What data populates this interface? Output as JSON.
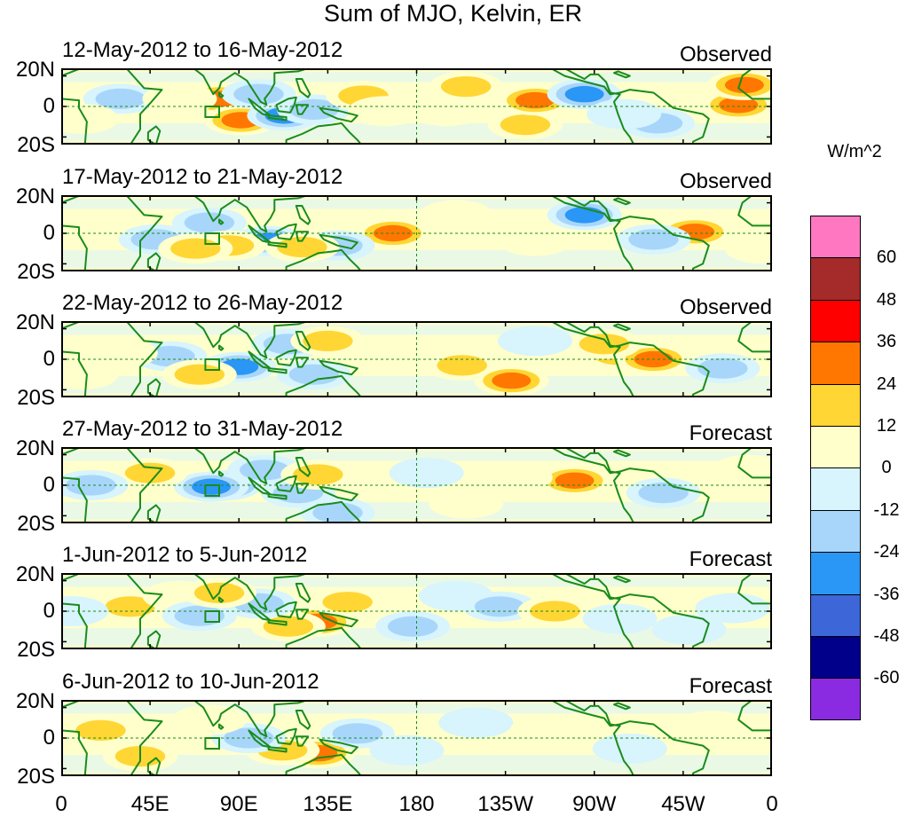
{
  "chart_data": {
    "type": "heatmap",
    "title": "Sum of MJO, Kelvin, ER",
    "colorbar_unit": "W/m^2",
    "y_ticks": [
      "20N",
      "0",
      "20S"
    ],
    "x_ticks": [
      "0",
      "45E",
      "90E",
      "135E",
      "180",
      "135W",
      "90W",
      "45W",
      "0"
    ],
    "x_tick_lons": [
      0,
      45,
      90,
      135,
      180,
      225,
      270,
      315,
      360
    ],
    "xlim_deg": [
      0,
      360
    ],
    "ylim_deg": [
      -25,
      25
    ],
    "colorbar_labels": [
      "60",
      "48",
      "36",
      "24",
      "12",
      "0",
      "-12",
      "-24",
      "-36",
      "-48",
      "-60"
    ],
    "levels": [
      {
        "min": 60,
        "color": "#ff77c0"
      },
      {
        "min": 48,
        "max": 60,
        "color": "#a52a2a"
      },
      {
        "min": 36,
        "max": 48,
        "color": "#ff0000"
      },
      {
        "min": 24,
        "max": 36,
        "color": "#ff7700"
      },
      {
        "min": 12,
        "max": 24,
        "color": "#ffd633"
      },
      {
        "min": 0,
        "max": 12,
        "color": "#ffffcc"
      },
      {
        "min": -12,
        "max": 0,
        "color": "#d8f4fc"
      },
      {
        "min": -24,
        "max": -12,
        "color": "#a8d6fb"
      },
      {
        "min": -36,
        "max": -24,
        "color": "#2a96f5"
      },
      {
        "min": -48,
        "max": -36,
        "color": "#3d66d8"
      },
      {
        "min": -60,
        "max": -48,
        "color": "#00008b"
      },
      {
        "max": -60,
        "color": "#8a2be2"
      }
    ],
    "panels": [
      {
        "period": "12-May-2012 to 16-May-2012",
        "status": "Observed",
        "anomalies": [
          {
            "lon": 80,
            "lat": 5,
            "value": 30
          },
          {
            "lon": 91,
            "lat": -9,
            "value": 32
          },
          {
            "lon": 113,
            "lat": -6,
            "value": -30
          },
          {
            "lon": 100,
            "lat": 8,
            "value": -20
          },
          {
            "lon": 128,
            "lat": -2,
            "value": -18
          },
          {
            "lon": 153,
            "lat": 7,
            "value": 14
          },
          {
            "lon": 164,
            "lat": -3,
            "value": 10
          },
          {
            "lon": 195,
            "lat": -3,
            "value": 10
          },
          {
            "lon": 205,
            "lat": 13,
            "value": 14
          },
          {
            "lon": 235,
            "lat": -12,
            "value": 22
          },
          {
            "lon": 240,
            "lat": 4,
            "value": 30
          },
          {
            "lon": 265,
            "lat": 8,
            "value": -28
          },
          {
            "lon": 302,
            "lat": -11,
            "value": -15
          },
          {
            "lon": 343,
            "lat": 1,
            "value": 28
          },
          {
            "lon": 346,
            "lat": 14,
            "value": 26
          },
          {
            "lon": 30,
            "lat": 5,
            "value": -14
          },
          {
            "lon": 10,
            "lat": -8,
            "value": 12
          },
          {
            "lon": 60,
            "lat": 5,
            "value": 10
          },
          {
            "lon": 285,
            "lat": -5,
            "value": -10
          }
        ]
      },
      {
        "period": "17-May-2012 to 21-May-2012",
        "status": "Observed",
        "anomalies": [
          {
            "lon": 168,
            "lat": 0,
            "value": 30
          },
          {
            "lon": 321,
            "lat": 1,
            "value": 28
          },
          {
            "lon": 75,
            "lat": 7,
            "value": -22
          },
          {
            "lon": 105,
            "lat": -5,
            "value": -25
          },
          {
            "lon": 48,
            "lat": -4,
            "value": -20
          },
          {
            "lon": 140,
            "lat": -8,
            "value": -14
          },
          {
            "lon": 122,
            "lat": -9,
            "value": 16
          },
          {
            "lon": 85,
            "lat": -8,
            "value": 22
          },
          {
            "lon": 68,
            "lat": -10,
            "value": 14
          },
          {
            "lon": 265,
            "lat": 12,
            "value": -26
          },
          {
            "lon": 300,
            "lat": -4,
            "value": -14
          },
          {
            "lon": 240,
            "lat": -5,
            "value": 10
          },
          {
            "lon": 200,
            "lat": 12,
            "value": 8
          },
          {
            "lon": 355,
            "lat": -10,
            "value": 10
          },
          {
            "lon": 15,
            "lat": 5,
            "value": 12
          }
        ]
      },
      {
        "period": "22-May-2012 to 26-May-2012",
        "status": "Observed",
        "anomalies": [
          {
            "lon": 90,
            "lat": -5,
            "value": -28
          },
          {
            "lon": 55,
            "lat": 2,
            "value": -20
          },
          {
            "lon": 128,
            "lat": -10,
            "value": -16
          },
          {
            "lon": 150,
            "lat": 5,
            "value": 10
          },
          {
            "lon": 115,
            "lat": 10,
            "value": -20
          },
          {
            "lon": 135,
            "lat": 12,
            "value": 16
          },
          {
            "lon": 70,
            "lat": -10,
            "value": 15
          },
          {
            "lon": 203,
            "lat": -4,
            "value": 16
          },
          {
            "lon": 228,
            "lat": -14,
            "value": 28
          },
          {
            "lon": 282,
            "lat": 3,
            "value": 16
          },
          {
            "lon": 300,
            "lat": 0,
            "value": 26
          },
          {
            "lon": 275,
            "lat": 10,
            "value": 14
          },
          {
            "lon": 240,
            "lat": 12,
            "value": -10
          },
          {
            "lon": 335,
            "lat": -6,
            "value": -14
          },
          {
            "lon": 30,
            "lat": 4,
            "value": 12
          },
          {
            "lon": 10,
            "lat": -10,
            "value": 10
          }
        ]
      },
      {
        "period": "27-May-2012 to 31-May-2012",
        "status": "Forecast",
        "anomalies": [
          {
            "lon": 83,
            "lat": 0,
            "value": -44
          },
          {
            "lon": 76,
            "lat": -1,
            "value": -30
          },
          {
            "lon": 120,
            "lat": -5,
            "value": -22
          },
          {
            "lon": 103,
            "lat": 10,
            "value": -18
          },
          {
            "lon": 130,
            "lat": 7,
            "value": 20
          },
          {
            "lon": 140,
            "lat": -18,
            "value": -20
          },
          {
            "lon": 185,
            "lat": 8,
            "value": -10
          },
          {
            "lon": 205,
            "lat": -12,
            "value": 8
          },
          {
            "lon": 260,
            "lat": 3,
            "value": 32
          },
          {
            "lon": 305,
            "lat": -5,
            "value": -14
          },
          {
            "lon": 45,
            "lat": 8,
            "value": 14
          },
          {
            "lon": 15,
            "lat": 0,
            "value": -14
          },
          {
            "lon": 348,
            "lat": 10,
            "value": 12
          },
          {
            "lon": 230,
            "lat": 5,
            "value": 8
          }
        ]
      },
      {
        "period": "1-Jun-2012 to 5-Jun-2012",
        "status": "Forecast",
        "anomalies": [
          {
            "lon": 130,
            "lat": -7,
            "value": 30
          },
          {
            "lon": 115,
            "lat": -10,
            "value": 18
          },
          {
            "lon": 35,
            "lat": 3,
            "value": 18
          },
          {
            "lon": 60,
            "lat": 10,
            "value": 12
          },
          {
            "lon": 70,
            "lat": -3,
            "value": -20
          },
          {
            "lon": 100,
            "lat": 5,
            "value": -16
          },
          {
            "lon": 145,
            "lat": 6,
            "value": 14
          },
          {
            "lon": 178,
            "lat": -10,
            "value": -16
          },
          {
            "lon": 200,
            "lat": 10,
            "value": -12
          },
          {
            "lon": 222,
            "lat": 3,
            "value": -14
          },
          {
            "lon": 250,
            "lat": 0,
            "value": 16
          },
          {
            "lon": 283,
            "lat": -5,
            "value": -12
          },
          {
            "lon": 318,
            "lat": -12,
            "value": -12
          },
          {
            "lon": 340,
            "lat": 2,
            "value": -10
          },
          {
            "lon": 5,
            "lat": 0,
            "value": -12
          },
          {
            "lon": 80,
            "lat": 12,
            "value": 16
          }
        ]
      },
      {
        "period": "6-Jun-2012 to 10-Jun-2012",
        "status": "Forecast",
        "anomalies": [
          {
            "lon": 130,
            "lat": -10,
            "value": 28
          },
          {
            "lon": 112,
            "lat": -8,
            "value": 16
          },
          {
            "lon": 20,
            "lat": 5,
            "value": 14
          },
          {
            "lon": 60,
            "lat": 0,
            "value": 12
          },
          {
            "lon": 95,
            "lat": 0,
            "value": -16
          },
          {
            "lon": 150,
            "lat": 3,
            "value": -16
          },
          {
            "lon": 175,
            "lat": -8,
            "value": -12
          },
          {
            "lon": 210,
            "lat": 10,
            "value": -10
          },
          {
            "lon": 246,
            "lat": 5,
            "value": 12
          },
          {
            "lon": 288,
            "lat": -7,
            "value": -12
          },
          {
            "lon": 330,
            "lat": 8,
            "value": 10
          },
          {
            "lon": 40,
            "lat": -12,
            "value": 16
          },
          {
            "lon": 75,
            "lat": 12,
            "value": 12
          }
        ]
      }
    ]
  }
}
